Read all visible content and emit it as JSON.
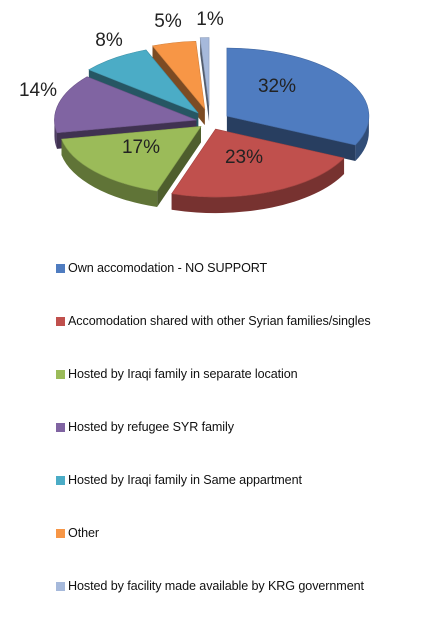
{
  "chart_data": {
    "type": "pie",
    "title": "",
    "slices": [
      {
        "label": "Own accomodation - NO SUPPORT",
        "value": 32,
        "display": "32%",
        "color": "#4F7CC0"
      },
      {
        "label": "Accomodation shared with other Syrian families/singles",
        "value": 23,
        "display": "23%",
        "color": "#C0504D"
      },
      {
        "label": "Hosted by Iraqi family in separate location",
        "value": 17,
        "display": "17%",
        "color": "#9BBB59"
      },
      {
        "label": "Hosted by refugee SYR family",
        "value": 14,
        "display": "14%",
        "color": "#8064A2"
      },
      {
        "label": "Hosted by Iraqi family in Same appartment",
        "value": 8,
        "display": "8%",
        "color": "#4BACC6"
      },
      {
        "label": "Other",
        "value": 5,
        "display": "5%",
        "color": "#F79646"
      },
      {
        "label": "Hosted by facility made available by KRG government",
        "value": 1,
        "display": "1%",
        "color": "#A6B9DB"
      }
    ],
    "style": "3d-exploded",
    "legend_position": "bottom"
  }
}
